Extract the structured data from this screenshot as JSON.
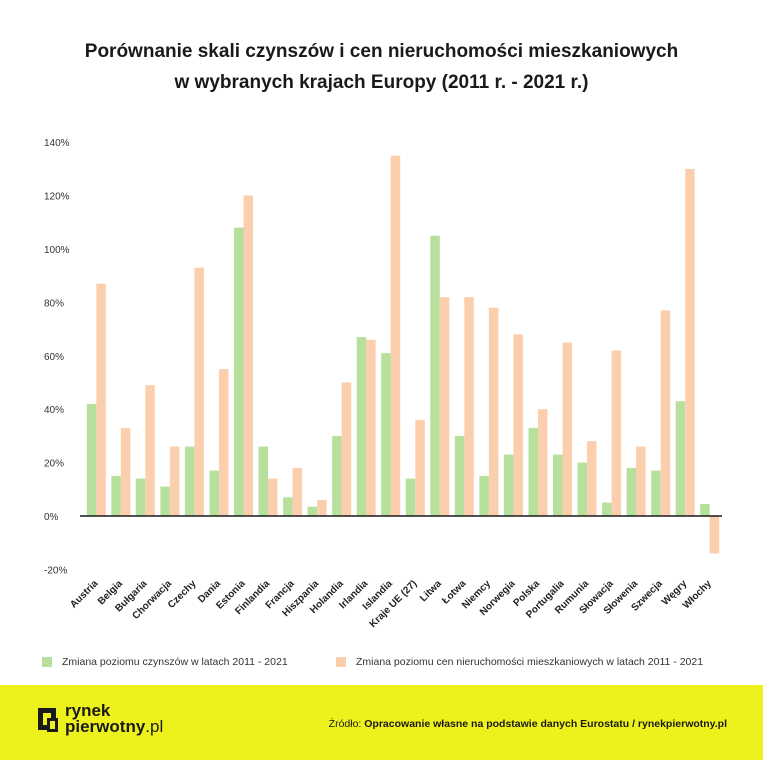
{
  "title": {
    "line1": "Porównanie skali czynszów i cen nieruchomości mieszkaniowych",
    "line2": "w wybranych krajach Europy (2011 r. - 2021 r.)"
  },
  "chart_data": {
    "type": "bar",
    "title": "Porównanie skali czynszów i cen nieruchomości mieszkaniowych w wybranych krajach Europy (2011 r. - 2021 r.)",
    "xlabel": "",
    "ylabel": "",
    "ylim": [
      -20,
      140
    ],
    "yticks": [
      -20,
      0,
      20,
      40,
      60,
      80,
      100,
      120,
      140
    ],
    "ytick_labels": [
      "-20%",
      "0%",
      "20%",
      "40%",
      "60%",
      "80%",
      "100%",
      "120%",
      "140%"
    ],
    "grid": false,
    "categories": [
      "Austria",
      "Belgia",
      "Bułgaria",
      "Chorwacja",
      "Czechy",
      "Dania",
      "Estonia",
      "Finlandia",
      "Francja",
      "Hiszpania",
      "Holandia",
      "Irlandia",
      "Islandia",
      "Kraje UE (27)",
      "Litwa",
      "Łotwa",
      "Niemcy",
      "Norwegia",
      "Polska",
      "Portugalia",
      "Rumunia",
      "Słowacja",
      "Słowenia",
      "Szwecja",
      "Węgry",
      "Włochy"
    ],
    "series": [
      {
        "name": "Zmiana poziomu czynszów w latach 2011 - 2021",
        "color": "#b6e09c",
        "values": [
          42,
          15,
          14,
          11,
          26,
          17,
          108,
          26,
          7,
          3.5,
          30,
          67,
          61,
          14,
          105,
          30,
          15,
          23,
          33,
          23,
          20,
          5,
          18,
          17,
          43,
          4.5
        ]
      },
      {
        "name": "Zmiana poziomu cen nieruchomości mieszkaniowych w latach 2011 - 2021",
        "color": "#fbcfae",
        "values": [
          87,
          33,
          49,
          26,
          93,
          55,
          120,
          14,
          18,
          6,
          50,
          66,
          135,
          36,
          82,
          82,
          78,
          68,
          40,
          65,
          28,
          62,
          26,
          77,
          130,
          -14
        ]
      }
    ]
  },
  "legend": {
    "rent_label": "Zmiana poziomu czynszów w latach 2011 - 2021",
    "price_label": "Zmiana poziomu cen nieruchomości mieszkaniowych w latach 2011 - 2021"
  },
  "footer": {
    "brand_line1": "rynek",
    "brand_line2_bold": "pierwotny",
    "brand_line2_suffix": ".pl",
    "source_prefix": "Źródło: ",
    "source_text": "Opracowanie własne na podstawie danych Eurostatu / rynekpierwotny.pl",
    "background_color": "#eef21c"
  }
}
